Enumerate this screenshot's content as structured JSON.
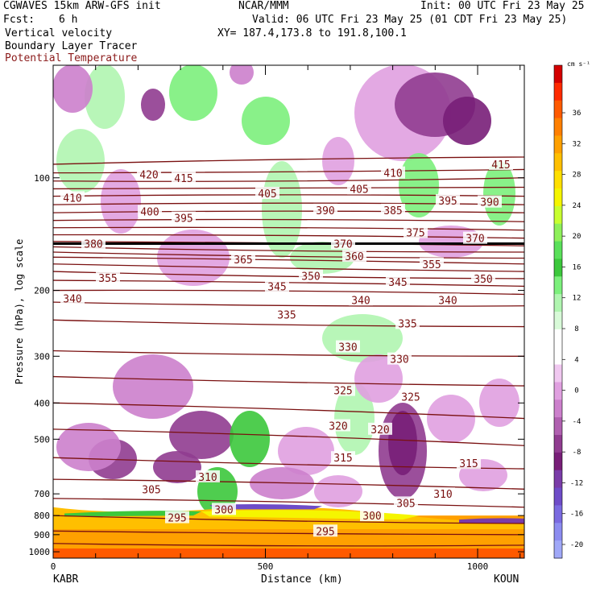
{
  "header": {
    "model": "CGWAVES 15km ARW-GFS init",
    "org": "NCAR/MMM",
    "init": "Init: 00 UTC Fri 23 May 25",
    "fcst_label": "Fcst:",
    "fcst_value": "6 h",
    "valid": "Valid: 06 UTC Fri 23 May 25 (01 CDT Fri 23 May 25)",
    "field1": "Vertical velocity",
    "xy": "XY= 187.4,173.8 to 191.8,100.1",
    "field2": "Boundary Layer Tracer",
    "field3": "Potential Temperature"
  },
  "chart_data": {
    "type": "heatmap",
    "title": "Vertical velocity / Boundary Layer Tracer / Potential Temperature cross-section",
    "xlabel": "Distance (km)",
    "ylabel": "Pressure (hPa), log scale",
    "x_ticks": [
      "0",
      "500",
      "1000"
    ],
    "x_range_km": [
      0,
      1110
    ],
    "y_scale": "log",
    "y_ticks": [
      "100",
      "200",
      "300",
      "400",
      "500",
      "700",
      "800",
      "900",
      "1000"
    ],
    "y_range_hpa": [
      1000,
      50
    ],
    "left_endpoint": "KABR",
    "right_endpoint": "KOUN",
    "colorbar_unit": "cm s⁻¹",
    "colorbar_ticks": [
      "36",
      "32",
      "28",
      "24",
      "20",
      "16",
      "12",
      "8",
      "4",
      "0",
      "-4",
      "-8",
      "-12",
      "-16",
      "-20"
    ],
    "colorbar_colors": [
      "#d40000",
      "#ff2a00",
      "#ff5a00",
      "#ff7f00",
      "#ffa000",
      "#ffbf00",
      "#ffdf00",
      "#f5f500",
      "#c8ff30",
      "#8ef05a",
      "#5ae05a",
      "#3cc83c",
      "#7cf07c",
      "#b0f5b0",
      "#d8fad8",
      "#ffffff",
      "#ffffff",
      "#f0c8f0",
      "#e0a0e0",
      "#cc80cc",
      "#b060b0",
      "#903c90",
      "#781e78",
      "#7a3ca8",
      "#6e4cc8",
      "#7a6ae0",
      "#8c8cf0",
      "#a0a8f8"
    ],
    "theta_labels": [
      "420",
      "415",
      "410",
      "405",
      "400",
      "395",
      "390",
      "385",
      "380",
      "375",
      "370",
      "365",
      "360",
      "355",
      "350",
      "345",
      "340",
      "335",
      "330",
      "325",
      "320",
      "315",
      "310",
      "305",
      "300",
      "295"
    ],
    "tracer_labels": [
      "300",
      "295"
    ]
  },
  "axis": {
    "xlabel": "Distance (km)",
    "ylabel": "Pressure (hPa), log scale",
    "left_endpoint": "KABR",
    "right_endpoint": "KOUN",
    "colorbar_unit": "cm s⁻¹"
  }
}
